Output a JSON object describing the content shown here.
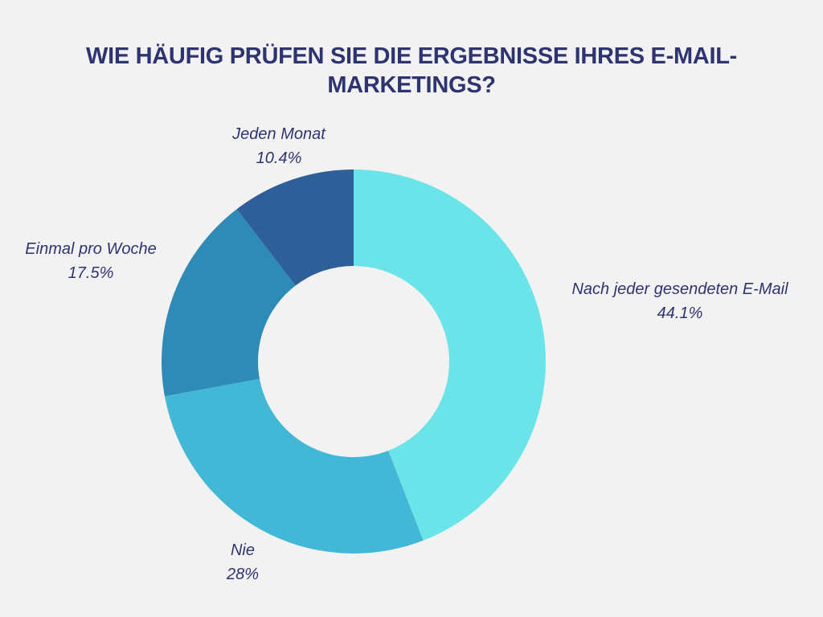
{
  "chart_data": {
    "type": "pie",
    "variant": "donut",
    "title": "WIE HÄUFIG PRÜFEN SIE DIE ERGEBNISSE IHRES E-MAIL-MARKETINGS?",
    "slices": [
      {
        "label": "Nach jeder gesendeten E-Mail",
        "value": 44.1,
        "value_label": "44.1%",
        "color": "#6ae4e8"
      },
      {
        "label": "Nie",
        "value": 28,
        "value_label": "28%",
        "color": "#43b8d6"
      },
      {
        "label": "Einmal pro Woche",
        "value": 17.5,
        "value_label": "17.5%",
        "color": "#2e8bb8"
      },
      {
        "label": "Jeden Monat",
        "value": 10.4,
        "value_label": "10.4%",
        "color": "#2e5f98"
      }
    ],
    "start": "top",
    "direction": "clockwise"
  }
}
